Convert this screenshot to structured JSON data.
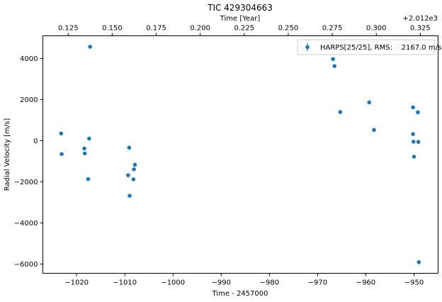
{
  "chart_data": {
    "type": "scatter",
    "title": "TIC 429304663",
    "xlabel": "Time - 2457000",
    "ylabel": "Radial Velocity [m/s]",
    "top_xlabel": "Time [Year]",
    "top_offset_label": "+2.012e3",
    "xlim": [
      -1027,
      -945
    ],
    "ylim": [
      -6450,
      5100
    ],
    "x_ticks": [
      -1020,
      -1010,
      -1000,
      -990,
      -980,
      -970,
      -960,
      -950
    ],
    "x_tick_labels": [
      "−1020",
      "−1010",
      "−1000",
      "−990",
      "−980",
      "−970",
      "−960",
      "−950"
    ],
    "y_ticks": [
      -6000,
      -4000,
      -2000,
      0,
      2000,
      4000
    ],
    "y_tick_labels": [
      "−6000",
      "−4000",
      "−2000",
      "0",
      "2000",
      "4000"
    ],
    "top_ticks": [
      0.125,
      0.15,
      0.175,
      0.2,
      0.225,
      0.25,
      0.275,
      0.3,
      0.325
    ],
    "top_tick_labels": [
      "0.125",
      "0.150",
      "0.175",
      "0.200",
      "0.225",
      "0.250",
      "0.275",
      "0.300",
      "0.325"
    ],
    "top_axis": {
      "x_at_zero": -1067.4,
      "days_per_unit": 365.25
    },
    "grid": false,
    "legend": {
      "position": "top-right",
      "label": "HARPS[25/25], RMS:    2167.0 m/s"
    },
    "color": "#1f77b4",
    "series": [
      {
        "name": "HARPS[25/25], RMS:    2167.0 m/s",
        "x": [
          -1023.2,
          -1023.1,
          -1018.4,
          -1018.3,
          -1017.6,
          -1017.4,
          -1017.2,
          -1009.3,
          -1009.1,
          -1009.0,
          -1008.2,
          -1008.1,
          -1007.9,
          -966.8,
          -966.5,
          -965.3,
          -959.3,
          -958.3,
          -950.2,
          -950.2,
          -950.1,
          -950.0,
          -949.2,
          -949.1,
          -949.0
        ],
        "y": [
          350,
          -650,
          -380,
          -620,
          -1870,
          100,
          4570,
          -1680,
          -340,
          -2680,
          -1880,
          -1390,
          -1170,
          3970,
          3630,
          1390,
          1860,
          520,
          1620,
          320,
          -50,
          -780,
          1380,
          -60,
          -5910
        ]
      }
    ]
  }
}
